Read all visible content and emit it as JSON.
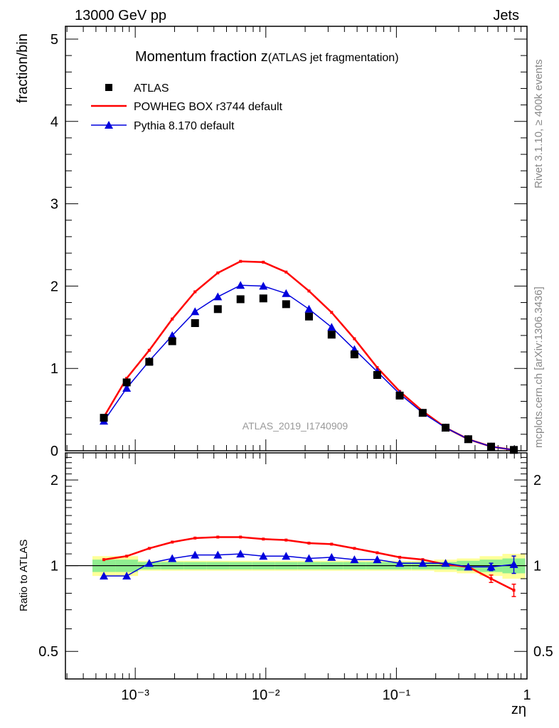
{
  "header": {
    "left": "13000 GeV pp",
    "right": "Jets"
  },
  "side_texts": {
    "rivet": "Rivet 3.1.10, ≥ 400k events",
    "mcplots": "mcplots.cern.ch [arXiv:1306.3436]"
  },
  "colors": {
    "atlas": "#000000",
    "powheg": "#ff0000",
    "pythia": "#0000dd",
    "band_inner": "#90ee90",
    "band_outer": "#ffff99"
  },
  "chart_data": [
    {
      "type": "line",
      "title_main": "Momentum fraction z",
      "title_sub": "(ATLAS jet fragmentation)",
      "ylabel": "fraction/bin",
      "xlabel": "zη",
      "xscale": "log",
      "xlim": [
        0.000292,
        1
      ],
      "ylim": [
        0,
        5.155
      ],
      "yticks": [
        "0",
        "1",
        "2",
        "3",
        "4",
        "5"
      ],
      "xticks": [
        "10⁻³",
        "10⁻²",
        "10⁻¹",
        "1"
      ],
      "watermark": "ATLAS_2019_I1740909",
      "legend_position": "top-left",
      "x": [
        0.000575,
        0.00086,
        0.00128,
        0.00192,
        0.00287,
        0.00429,
        0.0064,
        0.00957,
        0.0143,
        0.0214,
        0.0319,
        0.0477,
        0.0713,
        0.106,
        0.159,
        0.238,
        0.355,
        0.531,
        0.793
      ],
      "series": [
        {
          "name": "ATLAS",
          "style": "square-markers",
          "values": [
            0.4,
            0.83,
            1.08,
            1.33,
            1.55,
            1.72,
            1.84,
            1.85,
            1.78,
            1.63,
            1.41,
            1.17,
            0.92,
            0.67,
            0.46,
            0.28,
            0.14,
            0.05,
            0.01
          ]
        },
        {
          "name": "POWHEG BOX r3744 default",
          "style": "red-line",
          "values": [
            0.41,
            0.88,
            1.22,
            1.6,
            1.93,
            2.16,
            2.3,
            2.29,
            2.17,
            1.94,
            1.68,
            1.36,
            1.01,
            0.72,
            0.48,
            0.28,
            0.14,
            0.05,
            0.01
          ]
        },
        {
          "name": "Pythia 8.170 default",
          "style": "blue-triangles",
          "values": [
            0.36,
            0.76,
            1.09,
            1.4,
            1.69,
            1.87,
            2.01,
            2.0,
            1.91,
            1.72,
            1.5,
            1.23,
            0.96,
            0.69,
            0.46,
            0.28,
            0.14,
            0.05,
            0.01
          ]
        }
      ]
    },
    {
      "type": "line",
      "ylabel": "Ratio to ATLAS",
      "yscale": "log",
      "ylim": [
        0.4,
        2.49
      ],
      "yticks": [
        "0.5",
        "1",
        "2"
      ],
      "yticks_values": [
        0.5,
        1,
        2
      ],
      "x": [
        0.000575,
        0.00086,
        0.00128,
        0.00192,
        0.00287,
        0.00429,
        0.0064,
        0.00957,
        0.0143,
        0.0214,
        0.0319,
        0.0477,
        0.0713,
        0.106,
        0.159,
        0.238,
        0.355,
        0.531,
        0.793
      ],
      "band_inner": [
        0.05,
        0.05,
        0.03,
        0.03,
        0.03,
        0.03,
        0.03,
        0.03,
        0.03,
        0.03,
        0.03,
        0.03,
        0.03,
        0.03,
        0.03,
        0.03,
        0.04,
        0.05,
        0.06
      ],
      "band_outer": [
        0.08,
        0.08,
        0.04,
        0.04,
        0.04,
        0.04,
        0.04,
        0.04,
        0.04,
        0.04,
        0.04,
        0.04,
        0.04,
        0.04,
        0.04,
        0.05,
        0.06,
        0.08,
        0.1
      ],
      "series": [
        {
          "name": "POWHEG BOX r3744 default",
          "values": [
            1.05,
            1.08,
            1.15,
            1.21,
            1.25,
            1.26,
            1.26,
            1.24,
            1.23,
            1.2,
            1.19,
            1.15,
            1.11,
            1.07,
            1.05,
            1.01,
            0.99,
            0.9,
            0.82
          ]
        },
        {
          "name": "Pythia 8.170 default",
          "values": [
            0.92,
            0.92,
            1.02,
            1.06,
            1.09,
            1.09,
            1.1,
            1.08,
            1.08,
            1.06,
            1.07,
            1.05,
            1.05,
            1.02,
            1.02,
            1.02,
            0.99,
            0.99,
            1.01
          ]
        }
      ]
    }
  ]
}
